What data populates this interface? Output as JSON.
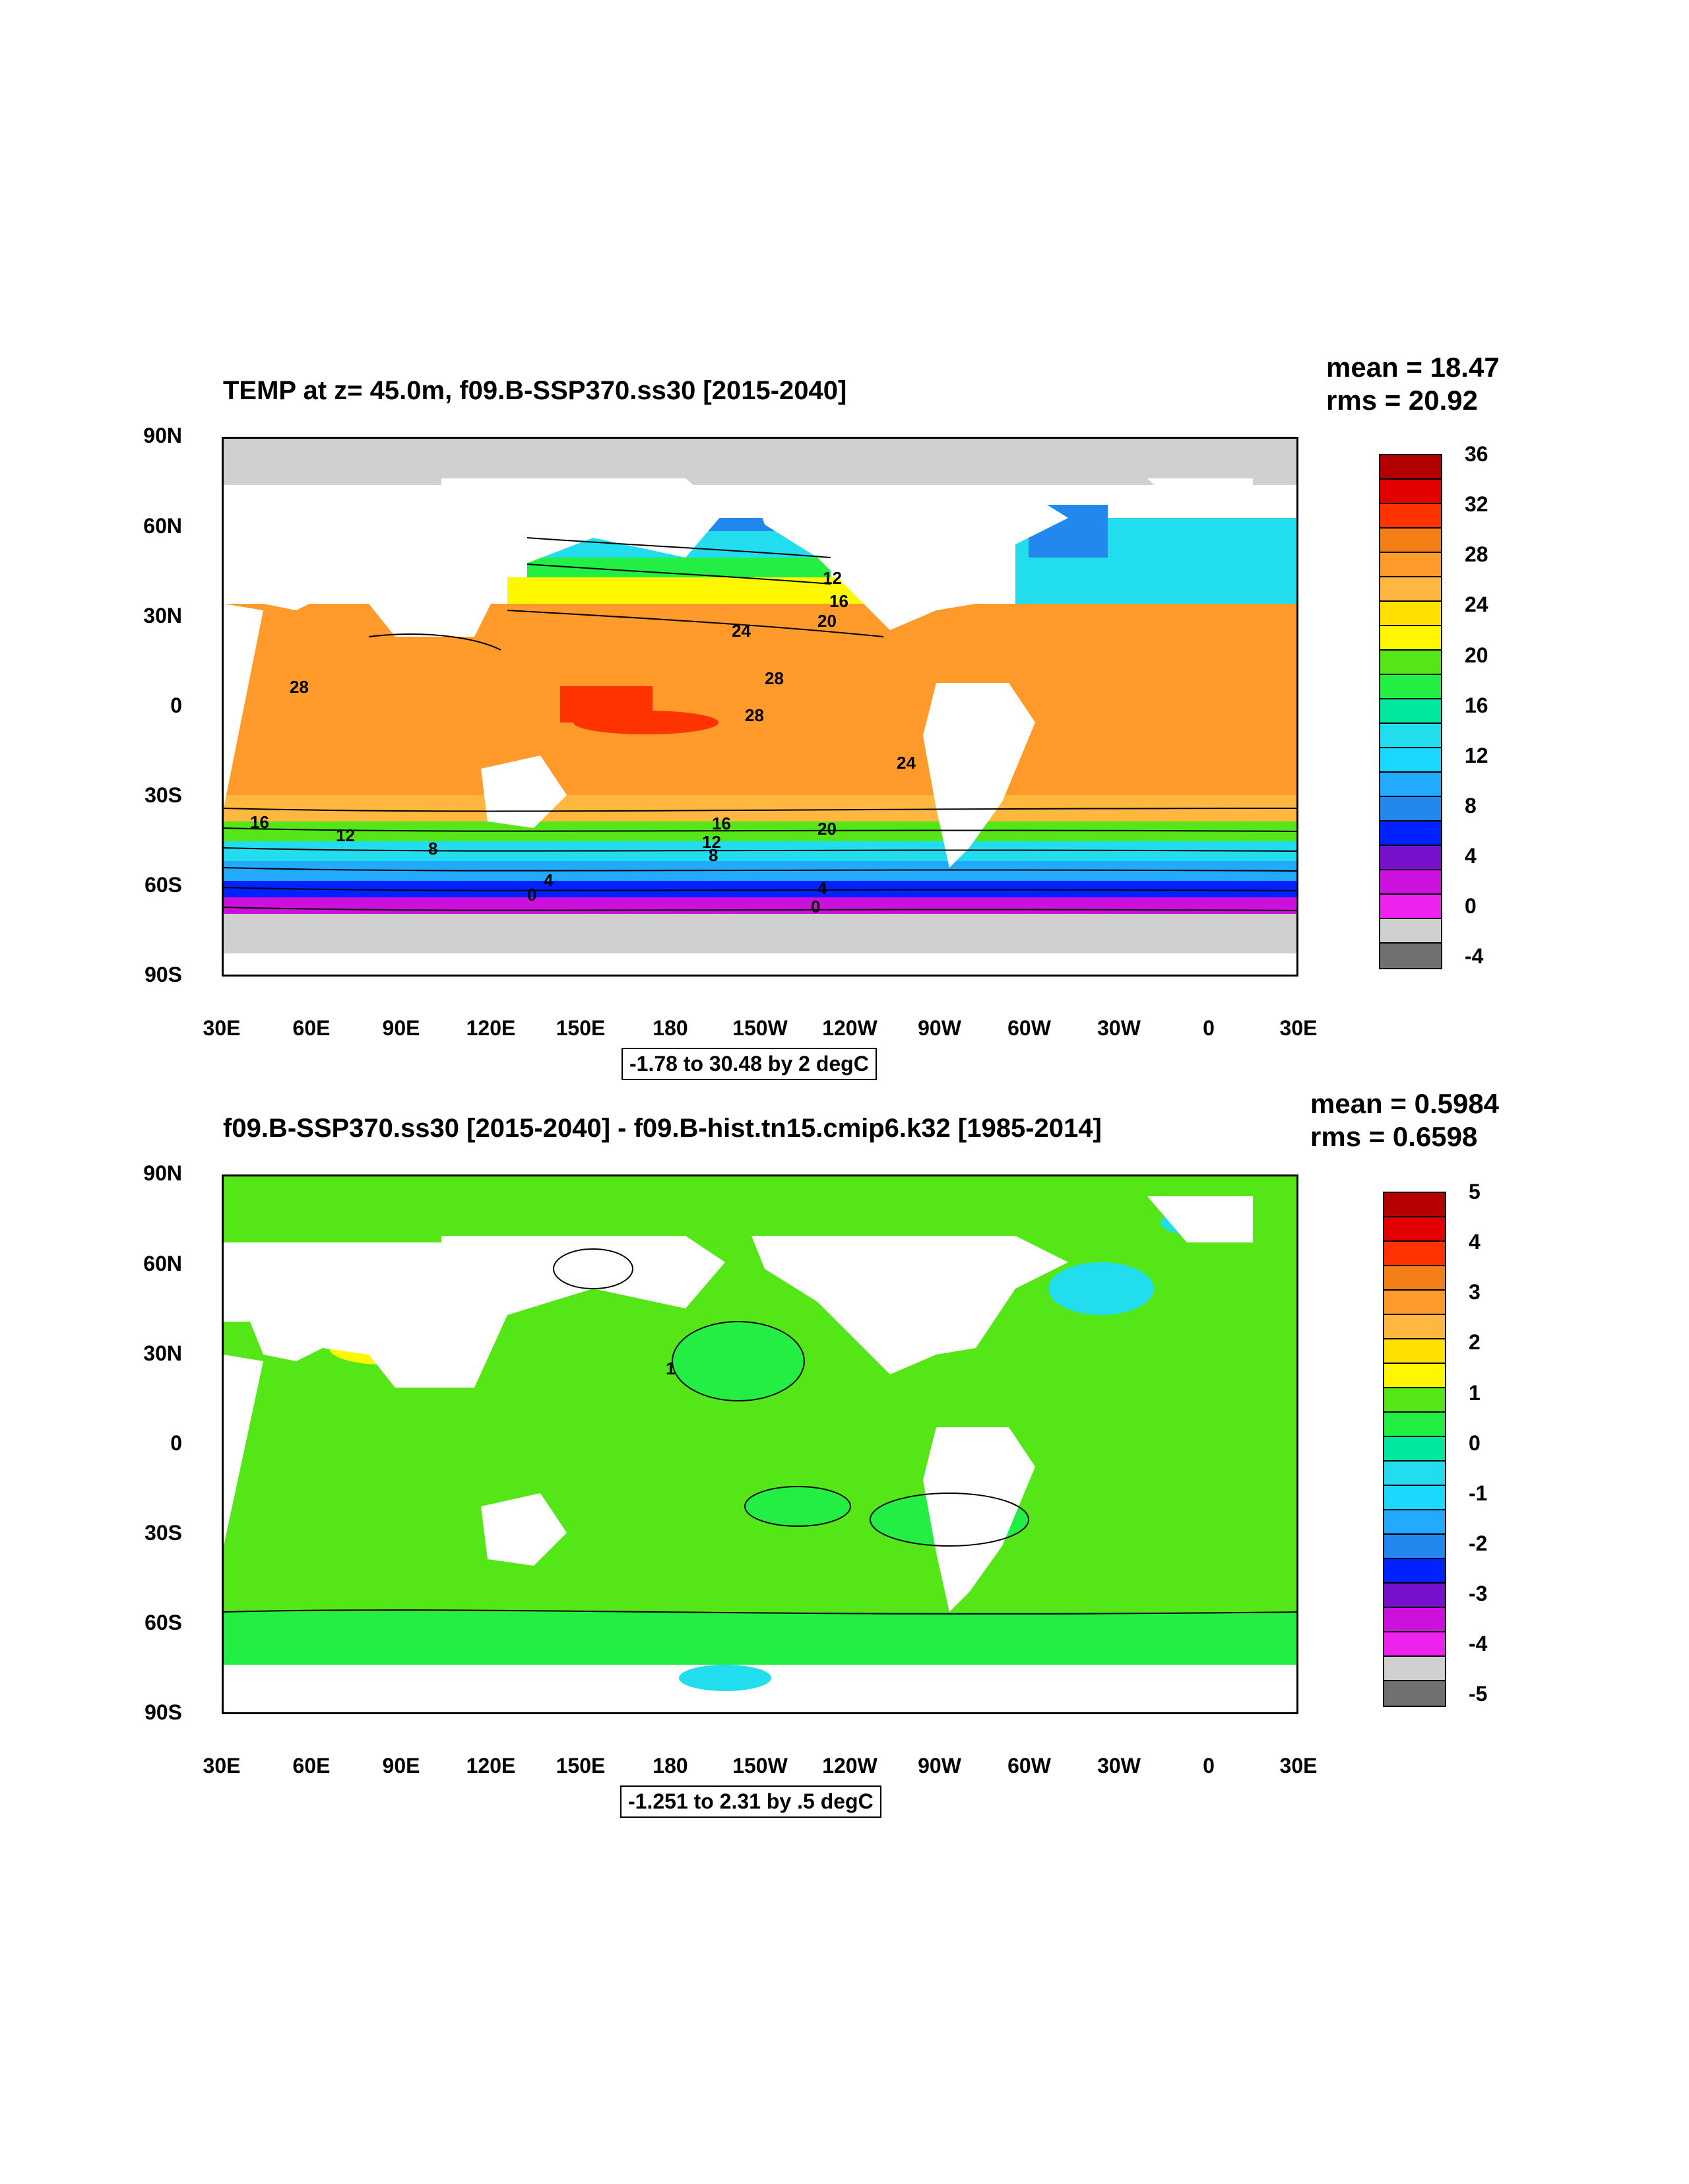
{
  "panels": [
    {
      "title": "TEMP at z=  45.0m, f09.B-SSP370.ss30 [2015-2040]",
      "mean_text": "mean = 18.47",
      "rms_text": "rms = 20.92",
      "range_text": "-1.78 to 30.48 by 2 degC",
      "colorbar": {
        "labels": [
          "36",
          "32",
          "28",
          "24",
          "20",
          "16",
          "12",
          "8",
          "4",
          "0",
          "-4"
        ],
        "colors": [
          "#b40000",
          "#e30000",
          "#ff3300",
          "#f57f17",
          "#ff9a2b",
          "#ffb740",
          "#ffe000",
          "#fff700",
          "#54e617",
          "#22ee44",
          "#00e8a0",
          "#22ddee",
          "#1ad8ff",
          "#22aaff",
          "#2288ee",
          "#0022ff",
          "#7711cc",
          "#cc11dd",
          "#ee22ee",
          "#d0d0d0",
          "#707070"
        ]
      },
      "contour_labels": [
        "28",
        "24",
        "28",
        "28",
        "12",
        "16",
        "20",
        "24",
        "20",
        "16",
        "12",
        "8",
        "16",
        "12",
        "8",
        "4",
        "0",
        "4",
        "0"
      ]
    },
    {
      "title": "f09.B-SSP370.ss30 [2015-2040] - f09.B-hist.tn15.cmip6.k32 [1985-2014]",
      "mean_text": "mean = 0.5984",
      "rms_text": "rms = 0.6598",
      "range_text": "-1.251 to 2.31 by .5 degC",
      "colorbar": {
        "labels": [
          "5",
          "4",
          "3",
          "2",
          "1",
          "0",
          "-1",
          "-2",
          "-3",
          "-4",
          "-5"
        ],
        "colors": [
          "#b40000",
          "#e30000",
          "#ff3300",
          "#f57f17",
          "#ff9a2b",
          "#ffb740",
          "#ffe000",
          "#fff700",
          "#54e617",
          "#22ee44",
          "#00e8a0",
          "#22ddee",
          "#1ad8ff",
          "#22aaff",
          "#2288ee",
          "#0022ff",
          "#7711cc",
          "#cc11dd",
          "#ee22ee",
          "#d0d0d0",
          "#707070"
        ]
      },
      "contour_labels": [
        "1"
      ]
    }
  ],
  "lat_labels": [
    "90N",
    "60N",
    "30N",
    "0",
    "30S",
    "60S",
    "90S"
  ],
  "lon_labels": [
    "30E",
    "60E",
    "90E",
    "120E",
    "150E",
    "180",
    "150W",
    "120W",
    "90W",
    "60W",
    "30W",
    "0",
    "30E"
  ]
}
